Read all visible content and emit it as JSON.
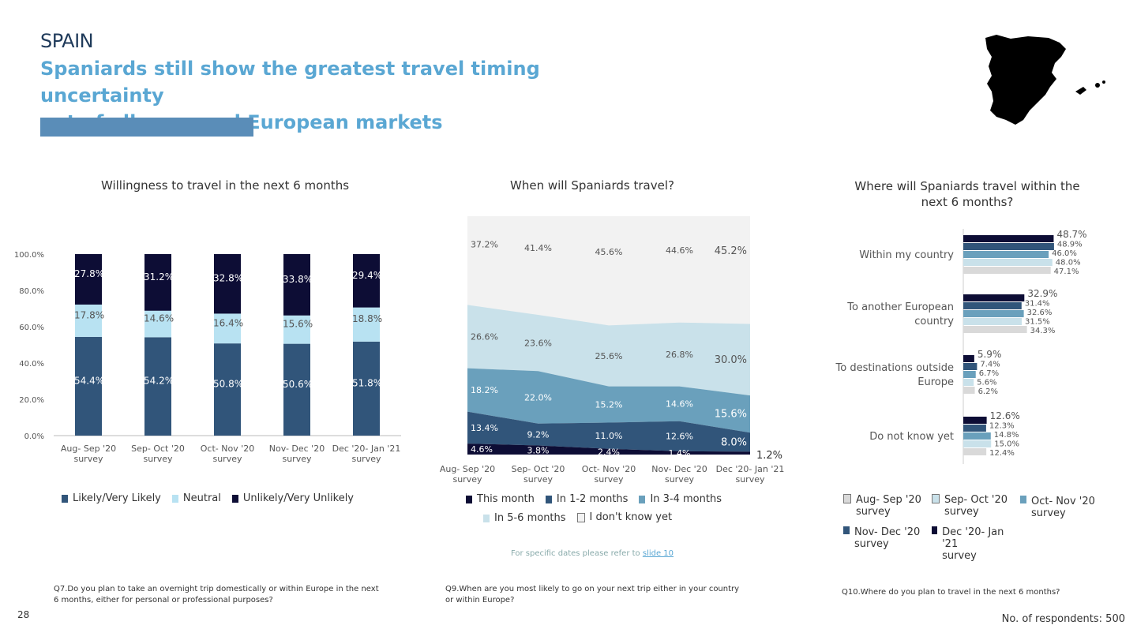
{
  "header": {
    "country": "SPAIN",
    "headline_line1": "Spaniards still show the greatest travel timing uncertainty",
    "headline_line2": "out of all surveyed European markets"
  },
  "colors": {
    "accent": "#5aa7d3",
    "bar": "#5a8db8",
    "navy": "#0d0d35",
    "dark_blue": "#31557a",
    "mid_blue": "#6aa0bc",
    "light_blue": "#b8e2f2",
    "pale": "#c9e1ea",
    "grey": "#d9d9d9"
  },
  "page_number": "28",
  "respondents": "No. of respondents: 500",
  "note": {
    "text": "For specific dates please refer to",
    "link": "slide 10"
  },
  "chart_data": [
    {
      "type": "bar",
      "stacked": true,
      "title": "Willingness to travel in the next 6 months",
      "categories": [
        "Aug- Sep '20 survey",
        "Sep- Oct '20 survey",
        "Oct- Nov '20 survey",
        "Nov- Dec '20 survey",
        "Dec '20- Jan '21 survey"
      ],
      "category_lines": [
        [
          "Aug- Sep '20",
          "survey"
        ],
        [
          "Sep- Oct '20",
          "survey"
        ],
        [
          "Oct- Nov '20",
          "survey"
        ],
        [
          "Nov- Dec '20",
          "survey"
        ],
        [
          "Dec '20- Jan '21",
          "survey"
        ]
      ],
      "yticks": [
        "0.0%",
        "20.0%",
        "40.0%",
        "60.0%",
        "80.0%",
        "100.0%"
      ],
      "ylim": [
        0,
        100
      ],
      "series": [
        {
          "name": "Likely/Very Likely",
          "color": "#31557a",
          "values": [
            54.4,
            54.2,
            50.8,
            50.6,
            51.8
          ],
          "labels": [
            "54.4%",
            "54.2%",
            "50.8%",
            "50.6%",
            "51.8%"
          ]
        },
        {
          "name": "Neutral",
          "color": "#b8e2f2",
          "values": [
            17.8,
            14.6,
            16.4,
            15.6,
            18.8
          ],
          "labels": [
            "17.8%",
            "14.6%",
            "16.4%",
            "15.6%",
            "18.8%"
          ]
        },
        {
          "name": "Unlikely/Very Unlikely",
          "color": "#0d0d35",
          "values": [
            27.8,
            31.2,
            32.8,
            33.8,
            29.4
          ],
          "labels": [
            "27.8%",
            "31.2%",
            "32.8%",
            "33.8%",
            "29.4%"
          ]
        }
      ],
      "legend_position": "bottom",
      "question": "Q7.Do you plan to take an overnight trip domestically or within Europe in the next 6 months, either for personal or professional purposes?"
    },
    {
      "type": "area",
      "stacked": true,
      "title": "When will Spaniards travel?",
      "categories": [
        "Aug- Sep '20 survey",
        "Sep- Oct '20 survey",
        "Oct- Nov '20 survey",
        "Nov- Dec '20 survey",
        "Dec '20- Jan '21 survey"
      ],
      "category_lines": [
        [
          "Aug- Sep '20",
          "survey"
        ],
        [
          "Sep- Oct '20",
          "survey"
        ],
        [
          "Oct- Nov '20",
          "survey"
        ],
        [
          "Nov- Dec '20",
          "survey"
        ],
        [
          "Dec '20- Jan '21",
          "survey"
        ]
      ],
      "ylim": [
        0,
        100
      ],
      "series": [
        {
          "name": "This month",
          "color": "#0d0d35",
          "values": [
            4.6,
            3.8,
            2.4,
            1.4,
            1.2
          ],
          "labels": [
            "4.6%",
            "3.8%",
            "2.4%",
            "1.4%",
            "1.2%"
          ]
        },
        {
          "name": "In 1-2 months",
          "color": "#31557a",
          "values": [
            13.4,
            9.2,
            11.0,
            12.6,
            8.0
          ],
          "labels": [
            "13.4%",
            "9.2%",
            "11.0%",
            "12.6%",
            "8.0%"
          ]
        },
        {
          "name": "In 3-4 months",
          "color": "#6aa0bc",
          "values": [
            18.2,
            22.0,
            15.2,
            14.6,
            15.6
          ],
          "labels": [
            "18.2%",
            "22.0%",
            "15.2%",
            "14.6%",
            "15.6%"
          ]
        },
        {
          "name": "In 5-6 months",
          "color": "#c9e1ea",
          "values": [
            26.6,
            23.6,
            25.6,
            26.8,
            30.0
          ],
          "labels": [
            "26.6%",
            "23.6%",
            "25.6%",
            "26.8%",
            "30.0%"
          ]
        },
        {
          "name": "I don't know yet",
          "color": "#f2f2f2",
          "values": [
            37.2,
            41.4,
            45.6,
            44.6,
            45.2
          ],
          "labels": [
            "37.2%",
            "41.4%",
            "45.6%",
            "44.6%",
            "45.2%"
          ]
        }
      ],
      "legend_position": "bottom",
      "question": "Q9.When are you most likely to go on your next trip either in your country or within Europe?"
    },
    {
      "type": "bar",
      "orientation": "horizontal",
      "title": "Where will Spaniards travel within the next 6 months?",
      "categories": [
        "Within my country",
        "To another European country",
        "To destinations outside Europe",
        "Do not know yet"
      ],
      "category_lines": [
        [
          "Within my country"
        ],
        [
          "To another European",
          "country"
        ],
        [
          "To destinations outside",
          "Europe"
        ],
        [
          "Do not know yet"
        ]
      ],
      "series": [
        {
          "name": "Dec '20- Jan '21 survey",
          "color": "#0d0d35",
          "values": [
            48.7,
            32.9,
            5.9,
            12.6
          ],
          "labels": [
            "48.7%",
            "32.9%",
            "5.9%",
            "12.6%"
          ]
        },
        {
          "name": "Nov- Dec '20 survey",
          "color": "#31557a",
          "values": [
            48.9,
            31.4,
            7.4,
            12.3
          ],
          "labels": [
            "48.9%",
            "31.4%",
            "7.4%",
            "12.3%"
          ]
        },
        {
          "name": "Oct- Nov '20 survey",
          "color": "#6aa0bc",
          "values": [
            46.0,
            32.6,
            6.7,
            14.8
          ],
          "labels": [
            "46.0%",
            "32.6%",
            "6.7%",
            "14.8%"
          ]
        },
        {
          "name": "Sep- Oct '20 survey",
          "color": "#c9e1ea",
          "values": [
            48.0,
            31.5,
            5.6,
            15.0
          ],
          "labels": [
            "48.0%",
            "31.5%",
            "5.6%",
            "15.0%"
          ]
        },
        {
          "name": "Aug- Sep '20 survey",
          "color": "#d9d9d9",
          "values": [
            47.1,
            34.3,
            6.2,
            12.4
          ],
          "labels": [
            "47.1%",
            "34.3%",
            "6.2%",
            "12.4%"
          ]
        }
      ],
      "legend_order": [
        4,
        3,
        2,
        1,
        0
      ],
      "legend_lines": [
        [
          "Aug- Sep '20",
          "survey"
        ],
        [
          "Sep- Oct '20",
          "survey"
        ],
        [
          "Oct- Nov '20",
          "survey"
        ],
        [
          "Nov- Dec '20",
          "survey"
        ],
        [
          "Dec '20- Jan '21",
          "survey"
        ]
      ],
      "legend_position": "bottom",
      "question": "Q10.Where do you plan to travel in the next 6 months?"
    }
  ]
}
